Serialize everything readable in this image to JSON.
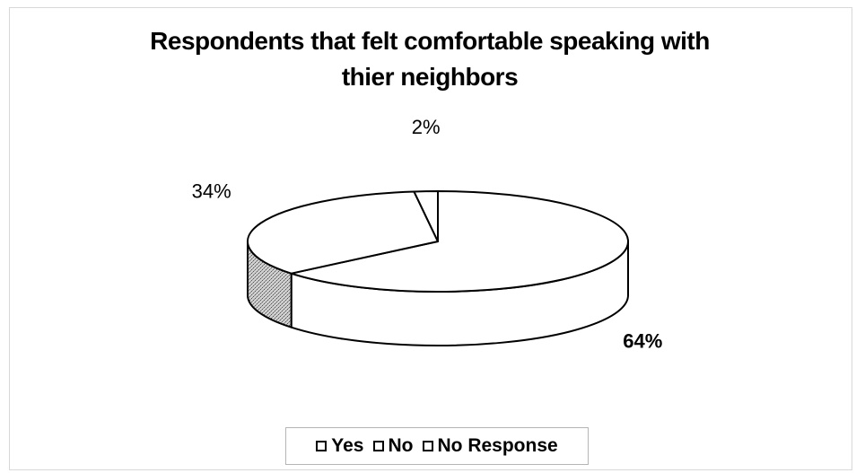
{
  "chart_data": {
    "type": "pie",
    "title_lines": [
      "Respondents that felt comfortable speaking with",
      "thier neighbors"
    ],
    "slices": [
      {
        "label": "Yes",
        "value": 64,
        "display": "64%",
        "color": "#ffffff"
      },
      {
        "label": "No",
        "value": 34,
        "display": "34%",
        "color": "#ffffff"
      },
      {
        "label": "No Response",
        "value": 2,
        "display": "2%",
        "color": "#ffffff"
      }
    ],
    "legend": [
      "Yes",
      "No",
      "No Response"
    ],
    "legend_position": "bottom",
    "style": "3d"
  }
}
